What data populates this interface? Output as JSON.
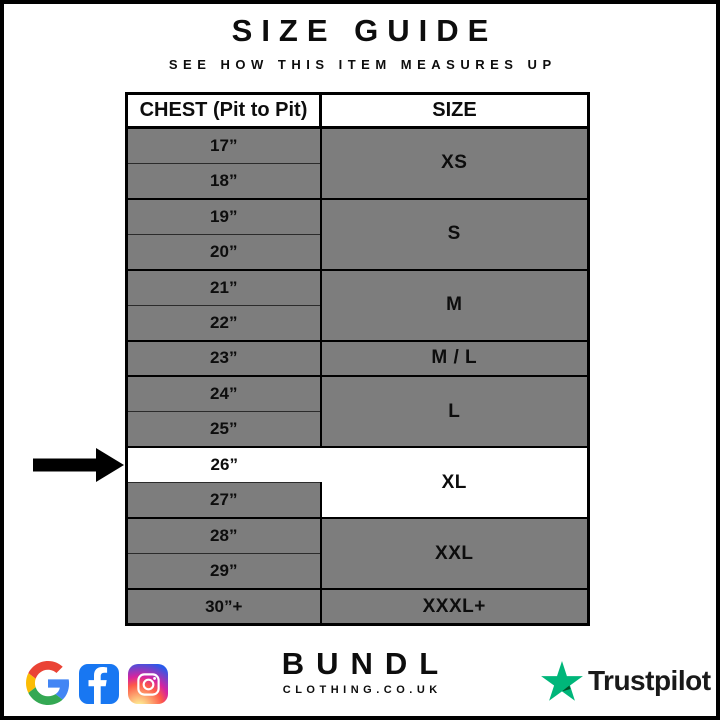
{
  "header": {
    "title": "SIZE GUIDE",
    "subtitle": "SEE HOW THIS ITEM MEASURES UP"
  },
  "table": {
    "col_chest": "CHEST (Pit to Pit)",
    "col_size": "SIZE",
    "groups": [
      {
        "size": "XS",
        "size_highlight": false,
        "rows": [
          {
            "chest": "17”",
            "highlight": false
          },
          {
            "chest": "18”",
            "highlight": false
          }
        ]
      },
      {
        "size": "S",
        "size_highlight": false,
        "rows": [
          {
            "chest": "19”",
            "highlight": false
          },
          {
            "chest": "20”",
            "highlight": false
          }
        ]
      },
      {
        "size": "M",
        "size_highlight": false,
        "rows": [
          {
            "chest": "21”",
            "highlight": false
          },
          {
            "chest": "22”",
            "highlight": false
          }
        ]
      },
      {
        "size": "M / L",
        "size_highlight": false,
        "rows": [
          {
            "chest": "23”",
            "highlight": false
          }
        ]
      },
      {
        "size": "L",
        "size_highlight": false,
        "rows": [
          {
            "chest": "24”",
            "highlight": false
          },
          {
            "chest": "25”",
            "highlight": false
          }
        ]
      },
      {
        "size": "XL",
        "size_highlight": true,
        "rows": [
          {
            "chest": "26”",
            "highlight": true
          },
          {
            "chest": "27”",
            "highlight": false
          }
        ]
      },
      {
        "size": "XXL",
        "size_highlight": false,
        "rows": [
          {
            "chest": "28”",
            "highlight": false
          },
          {
            "chest": "29”",
            "highlight": false
          }
        ]
      },
      {
        "size": "XXXL+",
        "size_highlight": false,
        "rows": [
          {
            "chest": "30”+",
            "highlight": false
          }
        ]
      }
    ]
  },
  "indicator": {
    "type": "arrow-right",
    "points_to_chest": "26”",
    "points_to_size": "XL"
  },
  "footer": {
    "brand_name": "BUNDL",
    "brand_domain": "CLOTHING.CO.UK",
    "social_icons": [
      "google",
      "facebook",
      "instagram"
    ],
    "trustpilot_label": "Trustpilot"
  },
  "colors": {
    "cell_gray": "#7d7d7d",
    "highlight": "#ffffff",
    "facebook_blue": "#1877F2",
    "trustpilot_green": "#00B67A",
    "trustpilot_dark": "#005128"
  },
  "chart_data": {
    "type": "table",
    "title": "SIZE GUIDE",
    "subtitle": "SEE HOW THIS ITEM MEASURES UP",
    "columns": [
      "CHEST (Pit to Pit)",
      "SIZE"
    ],
    "rows": [
      [
        "17”",
        "XS"
      ],
      [
        "18”",
        "XS"
      ],
      [
        "19”",
        "S"
      ],
      [
        "20”",
        "S"
      ],
      [
        "21”",
        "M"
      ],
      [
        "22”",
        "M"
      ],
      [
        "23”",
        "M / L"
      ],
      [
        "24”",
        "L"
      ],
      [
        "25”",
        "L"
      ],
      [
        "26”",
        "XL"
      ],
      [
        "27”",
        "XL"
      ],
      [
        "28”",
        "XXL"
      ],
      [
        "29”",
        "XXL"
      ],
      [
        "30”+",
        "XXXL+"
      ]
    ],
    "highlighted_row": {
      "chest": "26”",
      "size": "XL"
    },
    "layout_hints": {
      "grouped_sizes_span_rows": true,
      "arrow_marker_at": "26”"
    }
  }
}
